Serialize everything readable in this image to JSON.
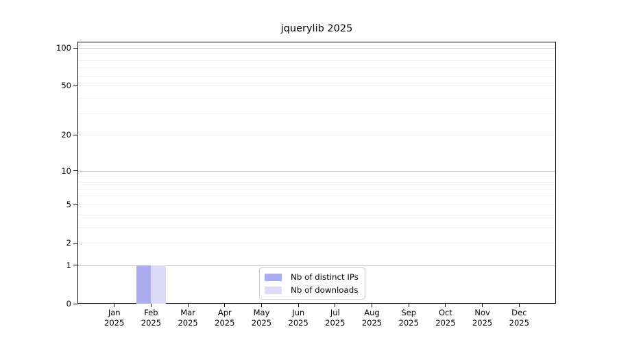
{
  "chart_data": {
    "type": "bar",
    "title": "jquerylib 2025",
    "x_tick_months": [
      "Jan",
      "Feb",
      "Mar",
      "Apr",
      "May",
      "Jun",
      "Jul",
      "Aug",
      "Sep",
      "Oct",
      "Nov",
      "Dec"
    ],
    "x_tick_year": "2025",
    "y_tick_values": [
      100,
      50,
      20,
      10,
      5,
      2,
      1,
      0
    ],
    "y_tick_labels": [
      "100",
      "50",
      "20",
      "10",
      "5",
      "2",
      "1",
      "0"
    ],
    "y_scale": "log1p",
    "ylim": [
      0,
      112
    ],
    "grid": "horizontal",
    "grid_major_values": [
      1,
      10,
      100
    ],
    "grid_minor_values": [
      2,
      3,
      4,
      5,
      6,
      7,
      8,
      9,
      20,
      30,
      40,
      50,
      60,
      70,
      80,
      90
    ],
    "series": [
      {
        "name": "Nb of distinct IPs",
        "color": "#acacf2",
        "values": [
          0,
          1,
          0,
          0,
          0,
          0,
          0,
          0,
          0,
          0,
          0,
          0
        ]
      },
      {
        "name": "Nb of downloads",
        "color": "#dcdcf8",
        "values": [
          0,
          1,
          0,
          0,
          0,
          0,
          0,
          0,
          0,
          0,
          0,
          0
        ]
      }
    ],
    "legend": {
      "position": "bottom-center",
      "entries": [
        "Nb of distinct IPs",
        "Nb of downloads"
      ]
    },
    "colors": {
      "grid_major": "#c9c9c9",
      "grid_minor": "#efefef",
      "spine": "#000000",
      "text": "#000000",
      "legend_border": "#cccccc",
      "legend_bg": "#ffffff"
    }
  }
}
